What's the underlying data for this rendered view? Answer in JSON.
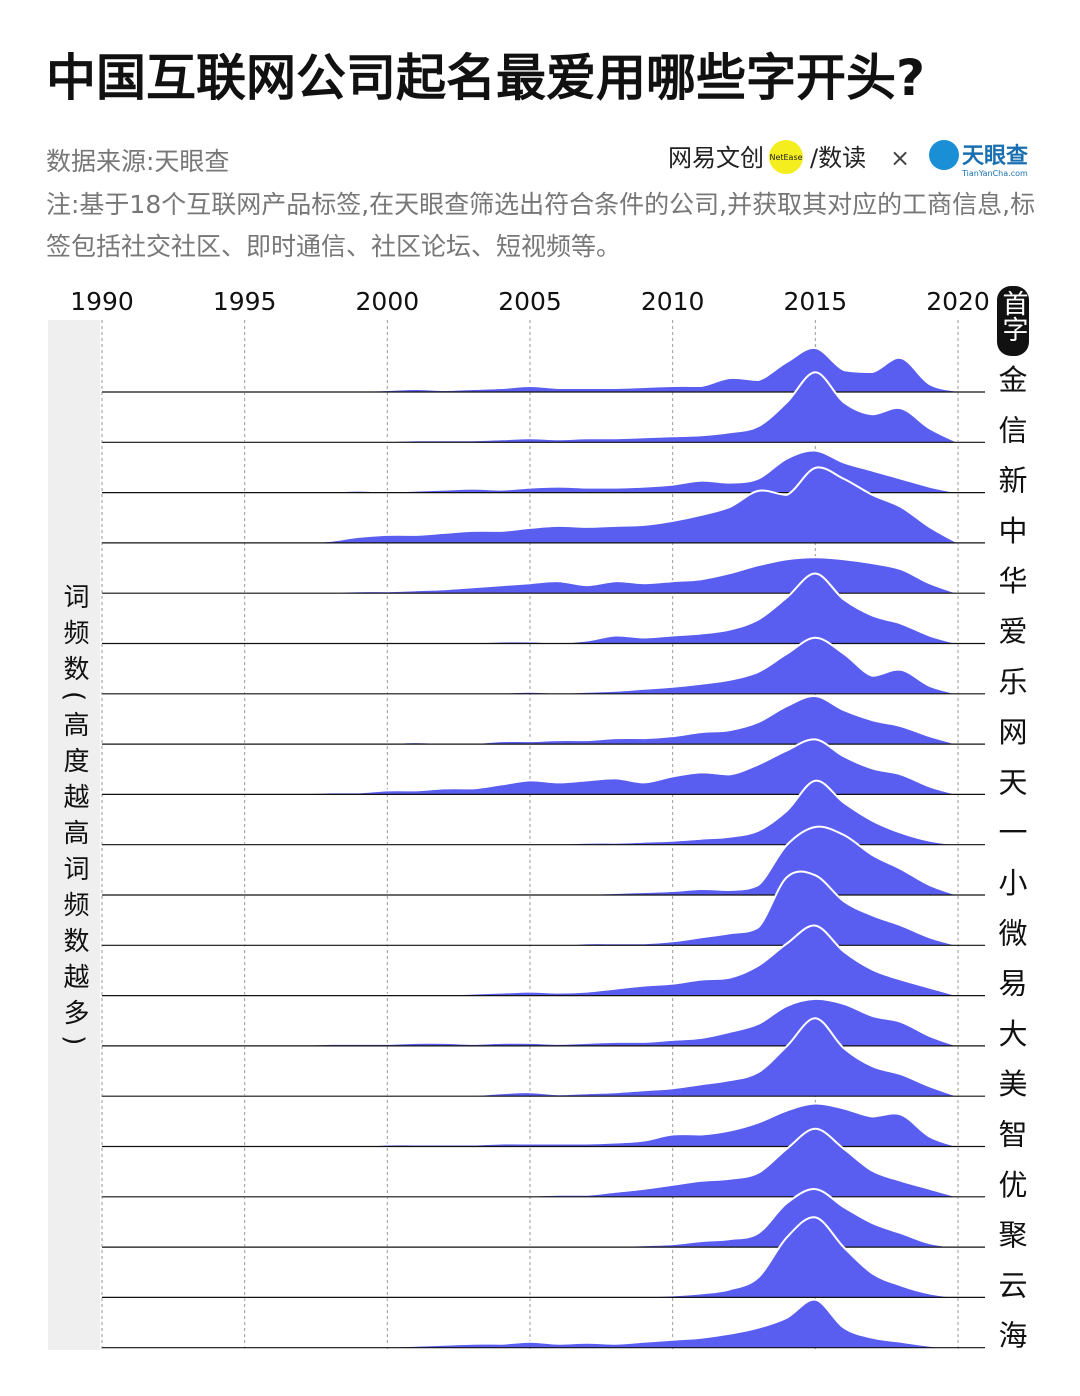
{
  "chart_data": {
    "type": "ridgeline",
    "title": "中国互联网公司起名最爱用哪些字开头?",
    "source": "数据来源:天眼查",
    "note": "注:基于18个互联网产品标签,在天眼查筛选出符合条件的公司,并获取其对应的工商信息,标签包括社交社区、即时通信、社区论坛、短视频等。",
    "logos": [
      "网易文创",
      "NetEase",
      "/数读",
      "×",
      "天眼查",
      "TianYanCha.com"
    ],
    "y_axis_label": "词频数(高度越高词频数越多)",
    "category_header": "首字",
    "color": "#5a5ef0",
    "xlim": [
      1990,
      2020
    ],
    "xticks": [
      1990,
      1995,
      2000,
      2005,
      2010,
      2015,
      2020
    ],
    "grid": true,
    "x": [
      1990,
      1991,
      1992,
      1993,
      1994,
      1995,
      1996,
      1997,
      1998,
      1999,
      2000,
      2001,
      2002,
      2003,
      2004,
      2005,
      2006,
      2007,
      2008,
      2009,
      2010,
      2011,
      2012,
      2013,
      2014,
      2015,
      2016,
      2017,
      2018,
      2019,
      2020
    ],
    "series": [
      {
        "name": "金",
        "values": [
          0,
          0,
          0,
          0,
          1,
          0,
          0,
          1,
          1,
          1,
          2,
          3,
          2,
          3,
          4,
          6,
          4,
          4,
          4,
          5,
          6,
          6,
          14,
          12,
          30,
          44,
          22,
          20,
          34,
          8,
          1
        ]
      },
      {
        "name": "信",
        "values": [
          0,
          0,
          0,
          0,
          0,
          0,
          0,
          0,
          0,
          0,
          1,
          2,
          2,
          2,
          3,
          4,
          3,
          4,
          4,
          5,
          6,
          7,
          10,
          16,
          40,
          70,
          40,
          28,
          34,
          14,
          0
        ]
      },
      {
        "name": "新",
        "values": [
          0,
          0,
          0,
          0,
          0,
          0,
          0,
          0,
          1,
          2,
          1,
          2,
          3,
          4,
          3,
          5,
          6,
          5,
          5,
          6,
          8,
          12,
          10,
          14,
          34,
          42,
          30,
          22,
          14,
          6,
          0
        ]
      },
      {
        "name": "中",
        "values": [
          0,
          0,
          0,
          0,
          1,
          1,
          0,
          0,
          2,
          6,
          8,
          8,
          10,
          12,
          12,
          15,
          17,
          16,
          17,
          18,
          22,
          28,
          36,
          52,
          48,
          75,
          64,
          48,
          36,
          16,
          0
        ]
      },
      {
        "name": "华",
        "values": [
          0,
          0,
          0,
          0,
          0,
          0,
          0,
          1,
          1,
          2,
          2,
          3,
          4,
          6,
          8,
          10,
          12,
          8,
          12,
          10,
          12,
          14,
          20,
          28,
          34,
          36,
          34,
          30,
          24,
          10,
          0
        ]
      },
      {
        "name": "爱",
        "values": [
          0,
          0,
          0,
          0,
          0,
          0,
          0,
          0,
          0,
          0,
          0,
          0,
          1,
          1,
          2,
          2,
          1,
          3,
          8,
          6,
          8,
          10,
          14,
          24,
          46,
          70,
          44,
          28,
          20,
          8,
          0
        ]
      },
      {
        "name": "乐",
        "values": [
          0,
          0,
          0,
          0,
          0,
          0,
          0,
          0,
          0,
          0,
          0,
          0,
          0,
          0,
          1,
          2,
          1,
          2,
          3,
          5,
          7,
          10,
          14,
          22,
          40,
          56,
          40,
          18,
          24,
          8,
          0
        ]
      },
      {
        "name": "网",
        "values": [
          0,
          0,
          0,
          0,
          0,
          0,
          0,
          0,
          0,
          0,
          1,
          2,
          1,
          1,
          3,
          3,
          4,
          4,
          6,
          6,
          8,
          12,
          14,
          22,
          38,
          48,
          34,
          24,
          18,
          8,
          0
        ]
      },
      {
        "name": "天",
        "values": [
          0,
          0,
          0,
          0,
          0,
          0,
          1,
          1,
          2,
          2,
          4,
          4,
          6,
          6,
          10,
          14,
          12,
          14,
          16,
          12,
          18,
          22,
          20,
          30,
          44,
          55,
          38,
          26,
          20,
          8,
          0
        ]
      },
      {
        "name": "一",
        "values": [
          0,
          0,
          0,
          0,
          0,
          0,
          0,
          0,
          0,
          0,
          0,
          0,
          0,
          0,
          0,
          1,
          1,
          2,
          2,
          3,
          4,
          6,
          8,
          14,
          34,
          64,
          42,
          24,
          12,
          4,
          0
        ]
      },
      {
        "name": "小",
        "values": [
          0,
          0,
          0,
          0,
          0,
          0,
          0,
          0,
          0,
          1,
          0,
          0,
          0,
          0,
          0,
          0,
          0,
          1,
          2,
          3,
          4,
          6,
          5,
          10,
          50,
          68,
          60,
          40,
          26,
          10,
          0
        ]
      },
      {
        "name": "微",
        "values": [
          0,
          0,
          0,
          0,
          0,
          0,
          0,
          0,
          0,
          0,
          0,
          0,
          0,
          0,
          0,
          0,
          0,
          2,
          2,
          2,
          4,
          8,
          12,
          18,
          68,
          70,
          44,
          30,
          20,
          8,
          0
        ]
      },
      {
        "name": "易",
        "values": [
          0,
          0,
          0,
          0,
          0,
          0,
          0,
          0,
          0,
          0,
          1,
          1,
          1,
          2,
          3,
          4,
          3,
          4,
          7,
          10,
          12,
          16,
          18,
          30,
          52,
          70,
          44,
          26,
          16,
          8,
          0
        ]
      },
      {
        "name": "大",
        "values": [
          0,
          0,
          0,
          0,
          0,
          0,
          1,
          1,
          2,
          2,
          2,
          3,
          3,
          2,
          3,
          3,
          2,
          3,
          4,
          4,
          6,
          8,
          14,
          22,
          40,
          47,
          42,
          30,
          24,
          10,
          0
        ]
      },
      {
        "name": "美",
        "values": [
          0,
          0,
          0,
          0,
          0,
          0,
          0,
          0,
          0,
          0,
          0,
          0,
          0,
          1,
          3,
          4,
          2,
          3,
          4,
          6,
          8,
          12,
          16,
          24,
          50,
          78,
          48,
          30,
          22,
          10,
          0
        ]
      },
      {
        "name": "智",
        "values": [
          0,
          0,
          0,
          0,
          0,
          0,
          0,
          0,
          0,
          0,
          2,
          2,
          2,
          2,
          3,
          3,
          3,
          3,
          4,
          6,
          12,
          12,
          16,
          24,
          36,
          43,
          38,
          30,
          32,
          10,
          0
        ]
      },
      {
        "name": "优",
        "values": [
          0,
          0,
          0,
          0,
          0,
          0,
          0,
          0,
          0,
          0,
          0,
          0,
          0,
          0,
          0,
          1,
          2,
          2,
          5,
          8,
          12,
          16,
          18,
          24,
          48,
          68,
          48,
          26,
          16,
          8,
          0
        ]
      },
      {
        "name": "聚",
        "values": [
          0,
          0,
          0,
          0,
          0,
          0,
          0,
          0,
          0,
          0,
          0,
          0,
          0,
          0,
          0,
          1,
          0,
          1,
          1,
          2,
          3,
          6,
          8,
          14,
          44,
          58,
          40,
          24,
          14,
          4,
          0
        ]
      },
      {
        "name": "云",
        "values": [
          0,
          0,
          0,
          0,
          0,
          0,
          0,
          0,
          0,
          0,
          0,
          0,
          0,
          0,
          0,
          0,
          0,
          0,
          1,
          1,
          2,
          4,
          8,
          20,
          60,
          80,
          50,
          24,
          12,
          4,
          0
        ]
      },
      {
        "name": "海",
        "values": [
          0,
          0,
          0,
          0,
          0,
          0,
          0,
          0,
          0,
          1,
          1,
          2,
          3,
          4,
          4,
          6,
          4,
          5,
          4,
          6,
          8,
          10,
          14,
          20,
          30,
          48,
          20,
          10,
          6,
          2,
          0
        ]
      }
    ]
  }
}
